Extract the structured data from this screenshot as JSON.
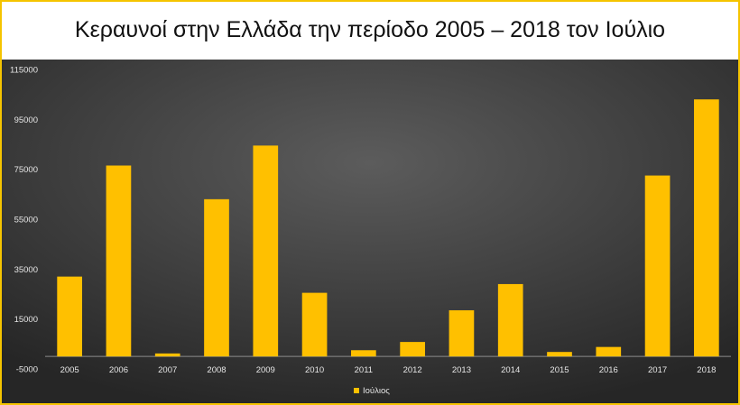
{
  "chart_data": {
    "type": "bar",
    "title": "Κεραυνοί στην Ελλάδα την περίοδο 2005 – 2018 τον Ιούλιο",
    "categories": [
      "2005",
      "2006",
      "2007",
      "2008",
      "2009",
      "2010",
      "2011",
      "2012",
      "2013",
      "2014",
      "2015",
      "2016",
      "2017",
      "2018"
    ],
    "series": [
      {
        "name": "Ιούλιος",
        "values": [
          32000,
          76500,
          1200,
          63000,
          84500,
          25500,
          2500,
          5800,
          18500,
          29000,
          1800,
          3800,
          72500,
          103000
        ]
      }
    ],
    "ylim": [
      -5000,
      115000
    ],
    "yticks": [
      "115000",
      "95000",
      "75000",
      "55000",
      "35000",
      "15000",
      "-5000"
    ],
    "ytick_values": [
      115000,
      95000,
      75000,
      55000,
      35000,
      15000,
      -5000
    ],
    "xlabel": "",
    "ylabel": "",
    "grid": false,
    "legend": "bottom",
    "colors": {
      "bar": "#ffc000",
      "background_top": "#5a5a5a",
      "background_bottom": "#262626",
      "tick_text": "#e6e6e6",
      "baseline": "#8c8c8c"
    }
  }
}
